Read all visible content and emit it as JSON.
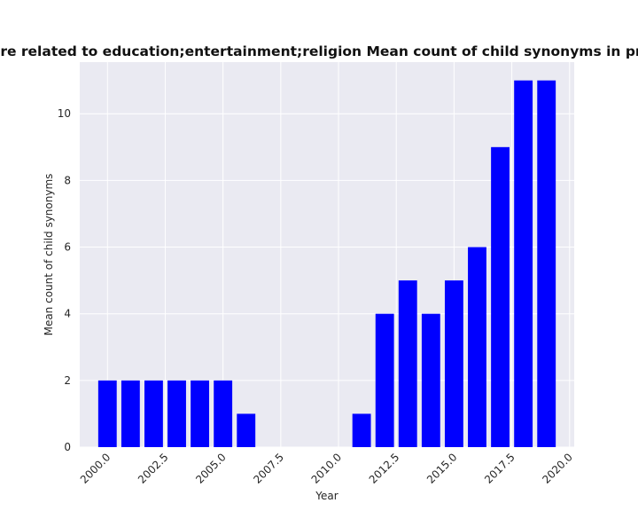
{
  "chart_data": {
    "type": "bar",
    "title": "ries are related to education;entertainment;religion Mean count of child synonyms in privacy p",
    "xlabel": "Year",
    "ylabel": "Mean count of child synonyms",
    "x": [
      2000,
      2001,
      2002,
      2003,
      2004,
      2005,
      2006,
      2011,
      2012,
      2013,
      2014,
      2015,
      2016,
      2017,
      2018,
      2019
    ],
    "values": [
      2,
      2,
      2,
      2,
      2,
      2,
      1,
      1,
      4,
      5,
      4,
      5,
      6,
      9,
      11,
      11
    ],
    "xlim": [
      1998.8,
      2020.2
    ],
    "ylim": [
      0,
      11.55
    ],
    "x_ticks": [
      "2000.0",
      "2002.5",
      "2005.0",
      "2007.5",
      "2010.0",
      "2012.5",
      "2015.0",
      "2017.5",
      "2020.0"
    ],
    "y_ticks": [
      "0",
      "2",
      "4",
      "6",
      "8",
      "10"
    ],
    "bar_color": "#0000ff",
    "background": "#eaeaf2",
    "grid": true
  }
}
